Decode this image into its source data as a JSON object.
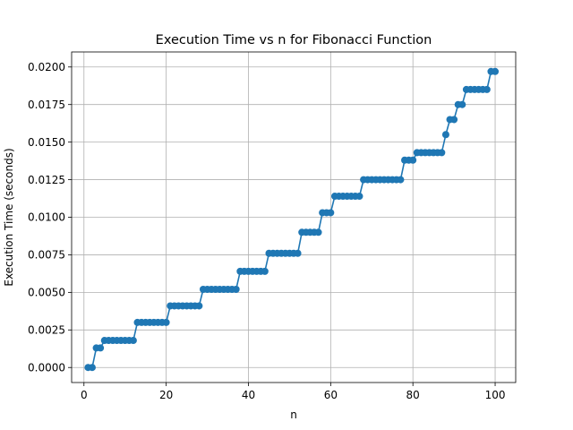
{
  "chart_data": {
    "type": "line",
    "title": "Execution Time vs n for Fibonacci Function",
    "xlabel": "n",
    "ylabel": "Execution Time (seconds)",
    "xlim": [
      -3,
      105
    ],
    "ylim": [
      -0.001,
      0.021
    ],
    "xticks": [
      0,
      20,
      40,
      60,
      80,
      100
    ],
    "xtick_labels": [
      "0",
      "20",
      "40",
      "60",
      "80",
      "100"
    ],
    "yticks": [
      0,
      0.0025,
      0.005,
      0.0075,
      0.01,
      0.0125,
      0.015,
      0.0175,
      0.02
    ],
    "ytick_labels": [
      "0.0000",
      "0.0025",
      "0.0050",
      "0.0075",
      "0.0100",
      "0.0125",
      "0.0150",
      "0.0175",
      "0.0200"
    ],
    "grid": true,
    "marker": "circle",
    "color": "#1f77b4",
    "x": [
      1,
      2,
      3,
      4,
      5,
      6,
      7,
      8,
      9,
      10,
      11,
      12,
      13,
      14,
      15,
      16,
      17,
      18,
      19,
      20,
      21,
      22,
      23,
      24,
      25,
      26,
      27,
      28,
      29,
      30,
      31,
      32,
      33,
      34,
      35,
      36,
      37,
      38,
      39,
      40,
      41,
      42,
      43,
      44,
      45,
      46,
      47,
      48,
      49,
      50,
      51,
      52,
      53,
      54,
      55,
      56,
      57,
      58,
      59,
      60,
      61,
      62,
      63,
      64,
      65,
      66,
      67,
      68,
      69,
      70,
      71,
      72,
      73,
      74,
      75,
      76,
      77,
      78,
      79,
      80,
      81,
      82,
      83,
      84,
      85,
      86,
      87,
      88,
      89,
      90,
      91,
      92,
      93,
      94,
      95,
      96,
      97,
      98,
      99,
      100
    ],
    "y": [
      0,
      0,
      0.0013,
      0.0013,
      0.0018,
      0.0018,
      0.0018,
      0.0018,
      0.0018,
      0.0018,
      0.0018,
      0.0018,
      0.003,
      0.003,
      0.003,
      0.003,
      0.003,
      0.003,
      0.003,
      0.003,
      0.0041,
      0.0041,
      0.0041,
      0.0041,
      0.0041,
      0.0041,
      0.0041,
      0.0041,
      0.0052,
      0.0052,
      0.0052,
      0.0052,
      0.0052,
      0.0052,
      0.0052,
      0.0052,
      0.0052,
      0.0064,
      0.0064,
      0.0064,
      0.0064,
      0.0064,
      0.0064,
      0.0064,
      0.0076,
      0.0076,
      0.0076,
      0.0076,
      0.0076,
      0.0076,
      0.0076,
      0.0076,
      0.009,
      0.009,
      0.009,
      0.009,
      0.009,
      0.0103,
      0.0103,
      0.0103,
      0.0114,
      0.0114,
      0.0114,
      0.0114,
      0.0114,
      0.0114,
      0.0114,
      0.0125,
      0.0125,
      0.0125,
      0.0125,
      0.0125,
      0.0125,
      0.0125,
      0.0125,
      0.0125,
      0.0125,
      0.0138,
      0.0138,
      0.0138,
      0.0143,
      0.0143,
      0.0143,
      0.0143,
      0.0143,
      0.0143,
      0.0143,
      0.0155,
      0.0165,
      0.0165,
      0.0175,
      0.0175,
      0.0185,
      0.0185,
      0.0185,
      0.0185,
      0.0185,
      0.0185,
      0.0197,
      0.0197
    ]
  }
}
